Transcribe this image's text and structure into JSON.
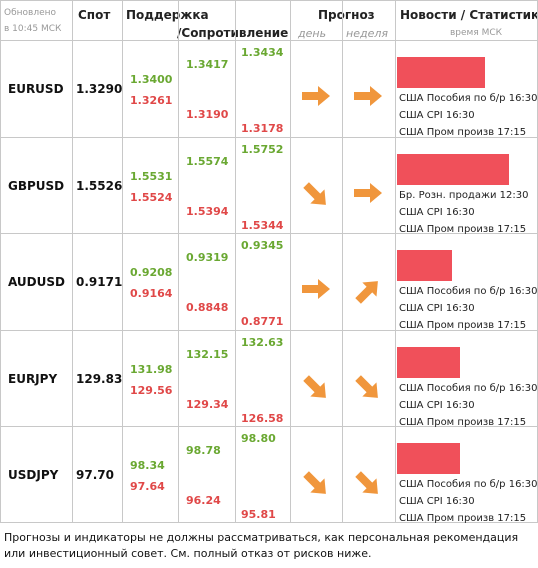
{
  "header": {
    "updated": "Обновлено",
    "updated_time": "в 10:45 МСК",
    "spot": "Спот",
    "support": "Поддержка",
    "resistance": "/Сопротивление",
    "forecast": "Прогноз",
    "day": "день",
    "week": "неделя",
    "news": "Новости / Статистика",
    "news_time": "время МСК"
  },
  "rows": [
    {
      "pair": "EURUSD",
      "spot": "1.3290",
      "green": [
        "1.3400",
        "1.3417",
        "1.3434"
      ],
      "red": [
        "1.3261",
        "1.3190",
        "1.3178"
      ],
      "day": "right",
      "week": "right",
      "bar": 64,
      "news": [
        "США Пособия по б/р 16:30",
        "США CPI 16:30",
        "США Пром произв 17:15"
      ]
    },
    {
      "pair": "GBPUSD",
      "spot": "1.5526",
      "green": [
        "1.5531",
        "1.5574",
        "1.5752"
      ],
      "red": [
        "1.5524",
        "1.5394",
        "1.5344"
      ],
      "day": "down-right",
      "week": "right",
      "bar": 81,
      "news": [
        "Бр. Розн. продажи 12:30",
        "США CPI 16:30",
        "США Пром произв 17:15"
      ]
    },
    {
      "pair": "AUDUSD",
      "spot": "0.9171",
      "green": [
        "0.9208",
        "0.9319",
        "0.9345"
      ],
      "red": [
        "0.9164",
        "0.8848",
        "0.8771"
      ],
      "day": "right",
      "week": "up-right",
      "bar": 40,
      "news": [
        "США Пособия по б/р 16:30",
        "США CPI 16:30",
        "США Пром произв 17:15"
      ]
    },
    {
      "pair": "EURJPY",
      "spot": "129.83",
      "green": [
        "131.98",
        "132.15",
        "132.63"
      ],
      "red": [
        "129.56",
        "129.34",
        "126.58"
      ],
      "day": "down-right",
      "week": "down-right",
      "bar": 46,
      "news": [
        "США Пособия по б/р 16:30",
        "США CPI 16:30",
        "США Пром произв 17:15"
      ]
    },
    {
      "pair": "USDJPY",
      "spot": "97.70",
      "green": [
        "98.34",
        "98.78",
        "98.80"
      ],
      "red": [
        "97.64",
        "96.24",
        "95.81"
      ],
      "day": "down-right",
      "week": "down-right",
      "bar": 46,
      "news": [
        "США Пособия по б/р 16:30",
        "США CPI 16:30",
        "США Пром произв 17:15"
      ]
    }
  ],
  "footer": "Прогнозы и индикаторы не должны рассматриваться, как персональная рекомендация или инвестиционный совет. См. полный отказ от рисков ниже."
}
